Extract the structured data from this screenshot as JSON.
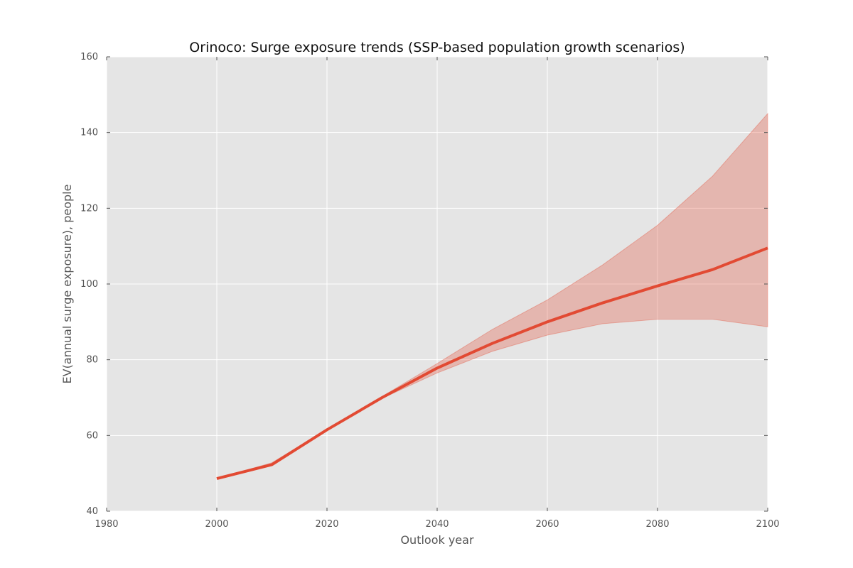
{
  "chart_data": {
    "type": "line",
    "title": "Orinoco: Surge exposure trends (SSP-based population growth scenarios)",
    "xlabel": "Outlook year",
    "ylabel": "EV(annual surge exposure), people",
    "xlim": [
      1980,
      2100
    ],
    "ylim": [
      40,
      160
    ],
    "xticks": [
      "1980",
      "2000",
      "2020",
      "2040",
      "2060",
      "2080",
      "2100"
    ],
    "yticks": [
      "40",
      "60",
      "80",
      "100",
      "120",
      "140",
      "160"
    ],
    "grid": true,
    "background": "#e5e5e5",
    "line_color": "#e24a33",
    "band_color": "#e24a33",
    "x": [
      2000,
      2010,
      2020,
      2030,
      2040,
      2050,
      2060,
      2070,
      2080,
      2090,
      2100
    ],
    "series": [
      {
        "values": [
          48.6,
          52.3,
          61.5,
          70.0,
          77.8,
          84.3,
          90.0,
          95.0,
          99.5,
          103.8,
          109.5
        ]
      }
    ],
    "band": {
      "lower": [
        48.6,
        52.1,
        61.4,
        69.8,
        76.5,
        82.2,
        86.5,
        89.5,
        90.7,
        90.7,
        88.7
      ],
      "upper": [
        48.6,
        52.8,
        61.6,
        70.3,
        79.0,
        88.0,
        95.8,
        105.0,
        115.5,
        128.5,
        145.0
      ]
    }
  }
}
